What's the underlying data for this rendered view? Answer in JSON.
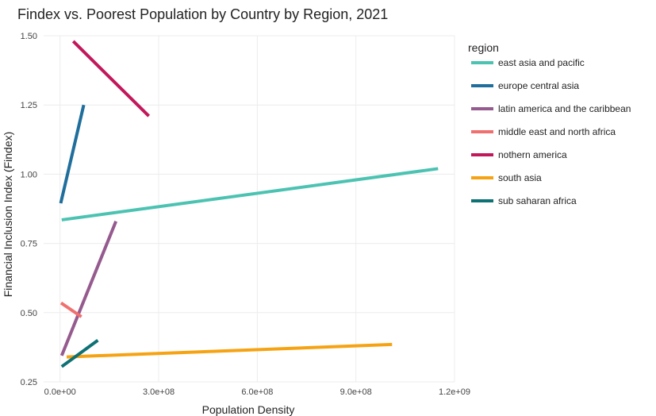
{
  "chart_data": {
    "type": "line",
    "title": "Findex vs. Poorest Population by Country by Region, 2021",
    "xlabel": "Population Density",
    "ylabel": "Financial Inclusion Index (Findex)",
    "xlim": [
      -50000000,
      1200000000
    ],
    "ylim": [
      0.25,
      1.5
    ],
    "x_ticks": [
      0,
      300000000,
      600000000,
      900000000,
      1200000000
    ],
    "x_tick_labels": [
      "0.0e+00",
      "3.0e+08",
      "6.0e+08",
      "9.0e+08",
      "1.2e+09"
    ],
    "y_ticks": [
      0.25,
      0.5,
      0.75,
      1.0,
      1.25,
      1.5
    ],
    "y_tick_labels": [
      "0.25",
      "0.50",
      "0.75",
      "1.00",
      "1.25",
      "1.50"
    ],
    "grid": true,
    "legend_title": "region",
    "legend_position": "right",
    "series": [
      {
        "name": "east asia and pacific",
        "color": "#4cc3b2",
        "x": [
          5000000,
          1150000000
        ],
        "y": [
          0.835,
          1.02
        ]
      },
      {
        "name": "europe central asia",
        "color": "#1f6e9c",
        "x": [
          2000000,
          72000000
        ],
        "y": [
          0.895,
          1.25
        ]
      },
      {
        "name": "latin america and the caribbean",
        "color": "#955a8e",
        "x": [
          5000000,
          170000000
        ],
        "y": [
          0.345,
          0.83
        ]
      },
      {
        "name": "middle east and north africa",
        "color": "#f07070",
        "x": [
          3000000,
          65000000
        ],
        "y": [
          0.535,
          0.485
        ]
      },
      {
        "name": "nothern america",
        "color": "#c2185b",
        "x": [
          40000000,
          270000000
        ],
        "y": [
          1.48,
          1.21
        ]
      },
      {
        "name": "south asia",
        "color": "#f6a313",
        "x": [
          20000000,
          1010000000
        ],
        "y": [
          0.34,
          0.385
        ]
      },
      {
        "name": "sub saharan africa",
        "color": "#0e7173",
        "x": [
          5000000,
          115000000
        ],
        "y": [
          0.305,
          0.4
        ]
      }
    ]
  }
}
